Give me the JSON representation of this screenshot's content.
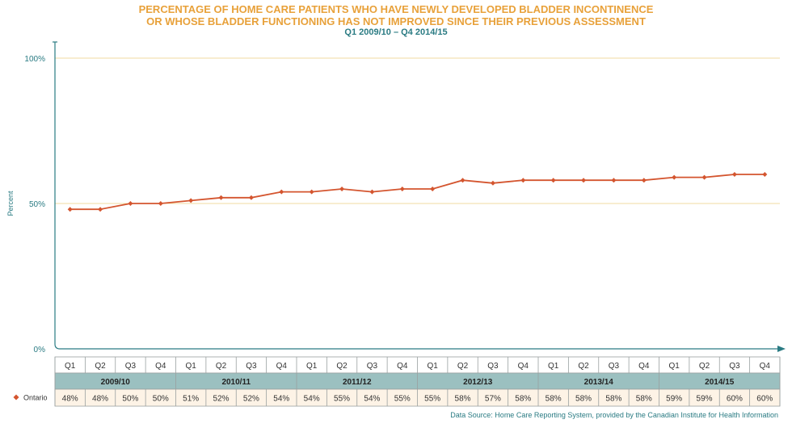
{
  "title_line1": "PERCENTAGE OF HOME CARE PATIENTS WHO HAVE NEWLY DEVELOPED BLADDER INCONTINENCE",
  "title_line2": "OR WHOSE BLADDER FUNCTIONING HAS NOT IMPROVED SINCE THEIR PREVIOUS ASSESSMENT",
  "subtitle": "Q1 2009/10 – Q4 2014/15",
  "source": "Data Source: Home Care Reporting System, provided by the Canadian Institute for Health Information",
  "colors": {
    "line": "#d4552f",
    "title": "#e8a13a",
    "accent": "#2a7b83",
    "year_band": "#9bc0c0",
    "value_cell": "#fdf3e6",
    "grid": "#f2dba0"
  },
  "chart_data": {
    "type": "line",
    "ylabel": "Percent",
    "ylim": [
      0,
      100
    ],
    "yticks": [
      "0%",
      "50%",
      "100%"
    ],
    "grid": "horizontal at 50% and 100%",
    "quarters": [
      "Q1",
      "Q2",
      "Q3",
      "Q4",
      "Q1",
      "Q2",
      "Q3",
      "Q4",
      "Q1",
      "Q2",
      "Q3",
      "Q4",
      "Q1",
      "Q2",
      "Q3",
      "Q4",
      "Q1",
      "Q2",
      "Q3",
      "Q4",
      "Q1",
      "Q2",
      "Q3",
      "Q4"
    ],
    "years": [
      "2009/10",
      "2010/11",
      "2011/12",
      "2012/13",
      "2013/14",
      "2014/15"
    ],
    "series": [
      {
        "name": "Ontario",
        "color": "#d4552f",
        "values": [
          48,
          48,
          50,
          50,
          51,
          52,
          52,
          54,
          54,
          55,
          54,
          55,
          55,
          58,
          57,
          58,
          58,
          58,
          58,
          58,
          59,
          59,
          60,
          60
        ],
        "labels": [
          "48%",
          "48%",
          "50%",
          "50%",
          "51%",
          "52%",
          "52%",
          "54%",
          "54%",
          "55%",
          "54%",
          "55%",
          "55%",
          "58%",
          "57%",
          "58%",
          "58%",
          "58%",
          "58%",
          "58%",
          "59%",
          "59%",
          "60%",
          "60%"
        ]
      }
    ]
  }
}
